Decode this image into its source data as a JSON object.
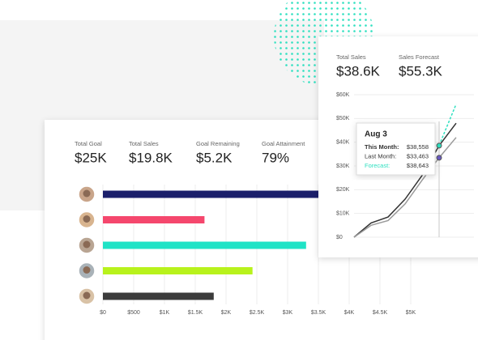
{
  "chart_data": [
    {
      "type": "hbar",
      "stats": [
        {
          "label": "Total Goal",
          "value": "$25K"
        },
        {
          "label": "Total Sales",
          "value": "$19.8K"
        },
        {
          "label": "Goal Remaining",
          "value": "$5.2K"
        },
        {
          "label": "Goal Attainment",
          "value": "79%"
        }
      ],
      "categories": [
        null,
        null,
        null,
        null,
        null
      ],
      "values": [
        3600,
        1650,
        3300,
        2430,
        1800
      ],
      "colors": [
        "#1b1f6b",
        "#f5476d",
        "#1fe3c6",
        "#b8f21c",
        "#3c3c3c"
      ],
      "xlim": [
        0,
        5000
      ],
      "xticks": [
        {
          "value": 0,
          "label": "$0"
        },
        {
          "value": 500,
          "label": "$500"
        },
        {
          "value": 1000,
          "label": "$1K"
        },
        {
          "value": 1500,
          "label": "$1.5K"
        },
        {
          "value": 2000,
          "label": "$2K"
        },
        {
          "value": 2500,
          "label": "$2.5K"
        },
        {
          "value": 3000,
          "label": "$3K"
        },
        {
          "value": 3500,
          "label": "$3.5K"
        },
        {
          "value": 4000,
          "label": "$4K"
        },
        {
          "value": 4500,
          "label": "$4.5K"
        },
        {
          "value": 5000,
          "label": "$5K"
        }
      ],
      "grid": true
    },
    {
      "type": "line",
      "stats": [
        {
          "label": "Total Sales",
          "value": "$38.6K"
        },
        {
          "label": "Sales Forecast",
          "value": "$55.3K"
        }
      ],
      "categories": [
        null,
        null,
        null,
        null,
        null,
        null,
        null
      ],
      "series": [
        {
          "color": "#333333",
          "values": [
            0,
            6000,
            8500,
            16000,
            26000,
            38558,
            48000
          ]
        },
        {
          "color": "#9a9a9a",
          "values": [
            0,
            5000,
            7000,
            14000,
            24000,
            33463,
            42000
          ]
        },
        {
          "color": "#2fe0c0",
          "values": [
            null,
            null,
            null,
            null,
            null,
            38643,
            56000
          ]
        }
      ],
      "ylim": [
        0,
        60000
      ],
      "yticks": [
        {
          "value": 0,
          "label": "$0"
        },
        {
          "value": 10000,
          "label": "$10K"
        },
        {
          "value": 20000,
          "label": "$20K"
        },
        {
          "value": 30000,
          "label": "$30K"
        },
        {
          "value": 40000,
          "label": "$40K"
        },
        {
          "value": 50000,
          "label": "$50K"
        },
        {
          "value": 60000,
          "label": "$60K"
        }
      ],
      "grid": true,
      "tooltip": {
        "title": "Aug 3",
        "rows": [
          {
            "label": "This Month:",
            "value": "$38,558"
          },
          {
            "label": "Last Month:",
            "value": "$33,463"
          },
          {
            "label": "Forecast:",
            "value": "$38,643"
          }
        ]
      }
    }
  ]
}
